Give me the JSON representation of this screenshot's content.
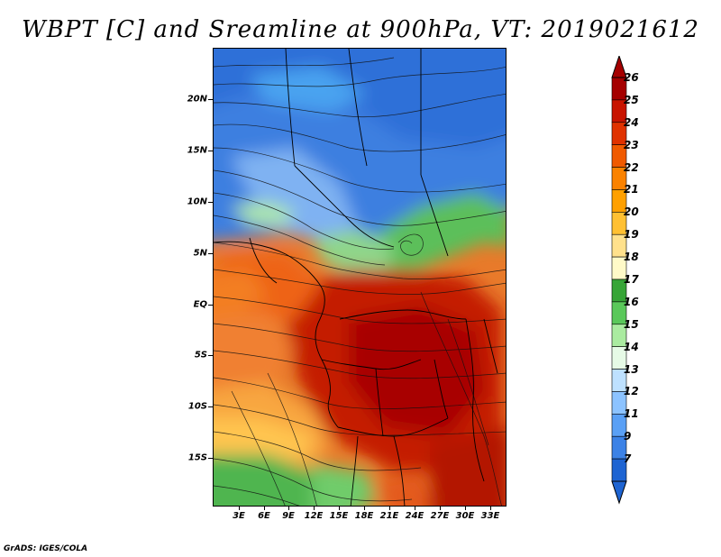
{
  "title": "WBPT [C] and Sreamline at 900hPa, VT: 2019021612",
  "credit": "GrADS: IGES/COLA",
  "lat_labels": [
    "20N",
    "15N",
    "10N",
    "5N",
    "EQ",
    "5S",
    "10S",
    "15S"
  ],
  "lon_labels": [
    "3E",
    "6E",
    "9E",
    "12E",
    "15E",
    "18E",
    "21E",
    "24E",
    "27E",
    "30E",
    "33E"
  ],
  "colorbar": {
    "labels": [
      "26",
      "25",
      "24",
      "23",
      "22",
      "21",
      "20",
      "19",
      "18",
      "17",
      "16",
      "15",
      "14",
      "13",
      "12",
      "11",
      "9",
      "7"
    ],
    "colors": [
      "#a50000",
      "#c81400",
      "#e03200",
      "#f05a00",
      "#fa8200",
      "#ffa000",
      "#ffc032",
      "#ffe18c",
      "#fffac8",
      "#37a537",
      "#5ac85a",
      "#aaeba0",
      "#e6fae6",
      "#bee1ff",
      "#8cc3ff",
      "#5aa0f5",
      "#3c82e6",
      "#1e64d2"
    ],
    "over_color": "#a50000",
    "under_color": "#1e64d2"
  },
  "map": {
    "lon_range": [
      0,
      35
    ],
    "lat_range": [
      -20,
      25
    ],
    "field": "wet-bulb potential temperature",
    "overlay": "streamlines"
  }
}
